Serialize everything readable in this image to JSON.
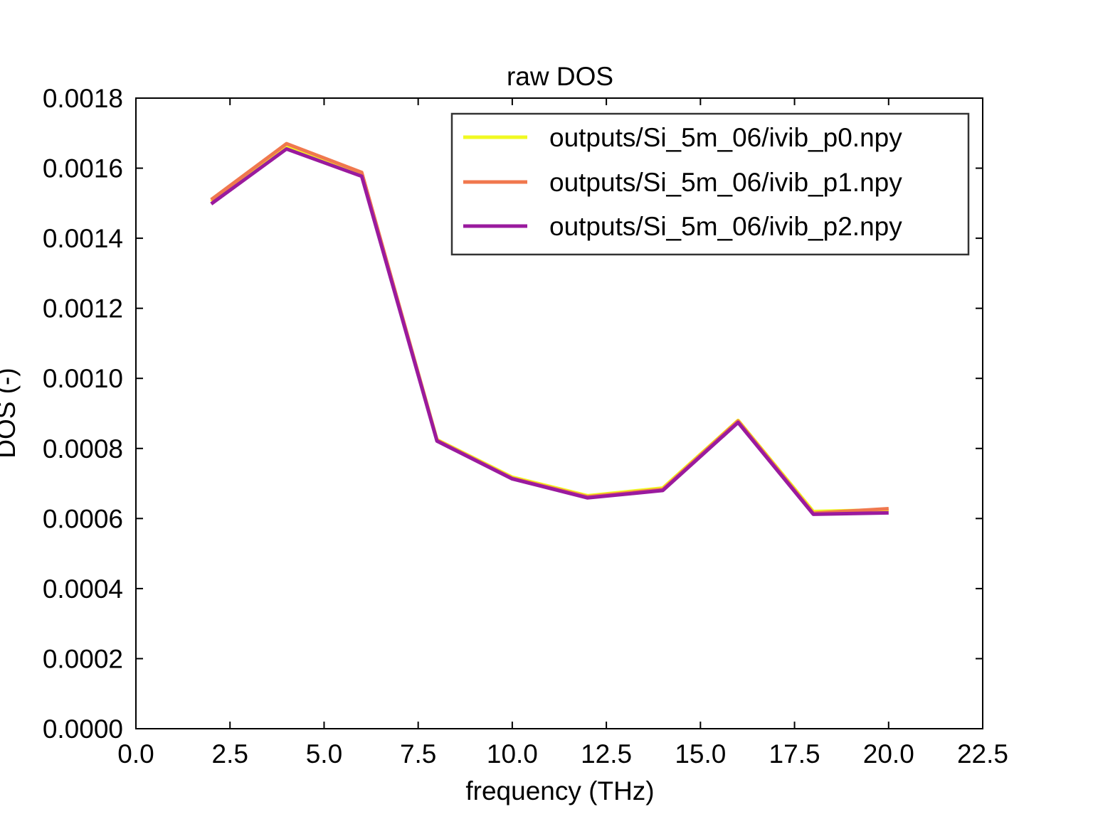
{
  "chart_data": {
    "type": "line",
    "title": "raw DOS",
    "xlabel": "frequency (THz)",
    "ylabel": "DOS (-)",
    "xlim": [
      0.0,
      22.5
    ],
    "ylim": [
      0.0,
      0.0018
    ],
    "x_ticks": [
      "0.0",
      "2.5",
      "5.0",
      "7.5",
      "10.0",
      "12.5",
      "15.0",
      "17.5",
      "20.0",
      "22.5"
    ],
    "x_tick_values": [
      0.0,
      2.5,
      5.0,
      7.5,
      10.0,
      12.5,
      15.0,
      17.5,
      20.0,
      22.5
    ],
    "y_ticks": [
      "0.0000",
      "0.0002",
      "0.0004",
      "0.0006",
      "0.0008",
      "0.0010",
      "0.0012",
      "0.0014",
      "0.0016",
      "0.0018"
    ],
    "y_tick_values": [
      0.0,
      0.0002,
      0.0004,
      0.0006,
      0.0008,
      0.001,
      0.0012,
      0.0014,
      0.0016,
      0.0018
    ],
    "grid": false,
    "legend_position": "top-right",
    "x": [
      2,
      4,
      6,
      8,
      10,
      12,
      14,
      16,
      18,
      20
    ],
    "series": [
      {
        "name": "outputs/Si_5m_06/ivib_p0.npy",
        "color": "#f0f921",
        "values": [
          0.001505,
          0.001665,
          0.001585,
          0.000825,
          0.000718,
          0.000665,
          0.000687,
          0.00088,
          0.00062,
          0.000625
        ]
      },
      {
        "name": "outputs/Si_5m_06/ivib_p1.npy",
        "color": "#f0784e",
        "values": [
          0.00151,
          0.00167,
          0.001588,
          0.000823,
          0.000715,
          0.000662,
          0.000683,
          0.000878,
          0.000615,
          0.000628
        ]
      },
      {
        "name": "outputs/Si_5m_06/ivib_p2.npy",
        "color": "#9a1a9e",
        "values": [
          0.001498,
          0.001655,
          0.001577,
          0.000821,
          0.000713,
          0.000659,
          0.00068,
          0.000874,
          0.000612,
          0.000616
        ]
      }
    ]
  }
}
